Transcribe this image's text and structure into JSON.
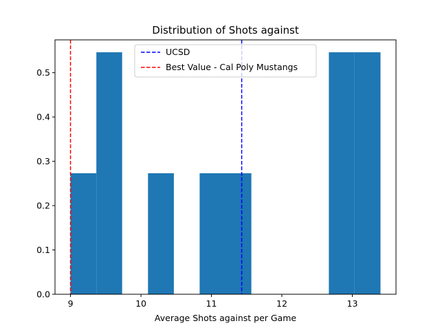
{
  "chart_data": {
    "type": "bar",
    "title": "Distribution of Shots against",
    "xlabel": "Average Shots against per Game",
    "ylabel": "",
    "xlim": [
      8.78,
      13.62
    ],
    "ylim": [
      0,
      0.574
    ],
    "xticks": [
      9,
      10,
      11,
      12,
      13
    ],
    "yticks": [
      0.0,
      0.1,
      0.2,
      0.3,
      0.4,
      0.5
    ],
    "ytick_labels": [
      "0.0",
      "0.1",
      "0.2",
      "0.3",
      "0.4",
      "0.5"
    ],
    "bins": [
      {
        "x0": 9.0,
        "x1": 9.367,
        "density": 0.273
      },
      {
        "x0": 9.367,
        "x1": 9.733,
        "density": 0.546
      },
      {
        "x0": 9.733,
        "x1": 10.1,
        "density": 0.0
      },
      {
        "x0": 10.1,
        "x1": 10.467,
        "density": 0.273
      },
      {
        "x0": 10.467,
        "x1": 10.833,
        "density": 0.0
      },
      {
        "x0": 10.833,
        "x1": 11.2,
        "density": 0.273
      },
      {
        "x0": 11.2,
        "x1": 11.567,
        "density": 0.273
      },
      {
        "x0": 11.567,
        "x1": 11.933,
        "density": 0.0
      },
      {
        "x0": 11.933,
        "x1": 12.3,
        "density": 0.0
      },
      {
        "x0": 12.3,
        "x1": 12.667,
        "density": 0.0
      },
      {
        "x0": 12.667,
        "x1": 13.033,
        "density": 0.546
      },
      {
        "x0": 13.033,
        "x1": 13.4,
        "density": 0.546
      }
    ],
    "bar_color": "#1f77b4",
    "reference_lines": [
      {
        "name": "UCSD",
        "x": 11.43,
        "color": "#0000ff",
        "style": "dashed"
      },
      {
        "name": "Best Value - Cal Poly Mustangs",
        "x": 9.0,
        "color": "#ff0000",
        "style": "dashed"
      }
    ],
    "legend_position": "top-center",
    "grid": false
  }
}
